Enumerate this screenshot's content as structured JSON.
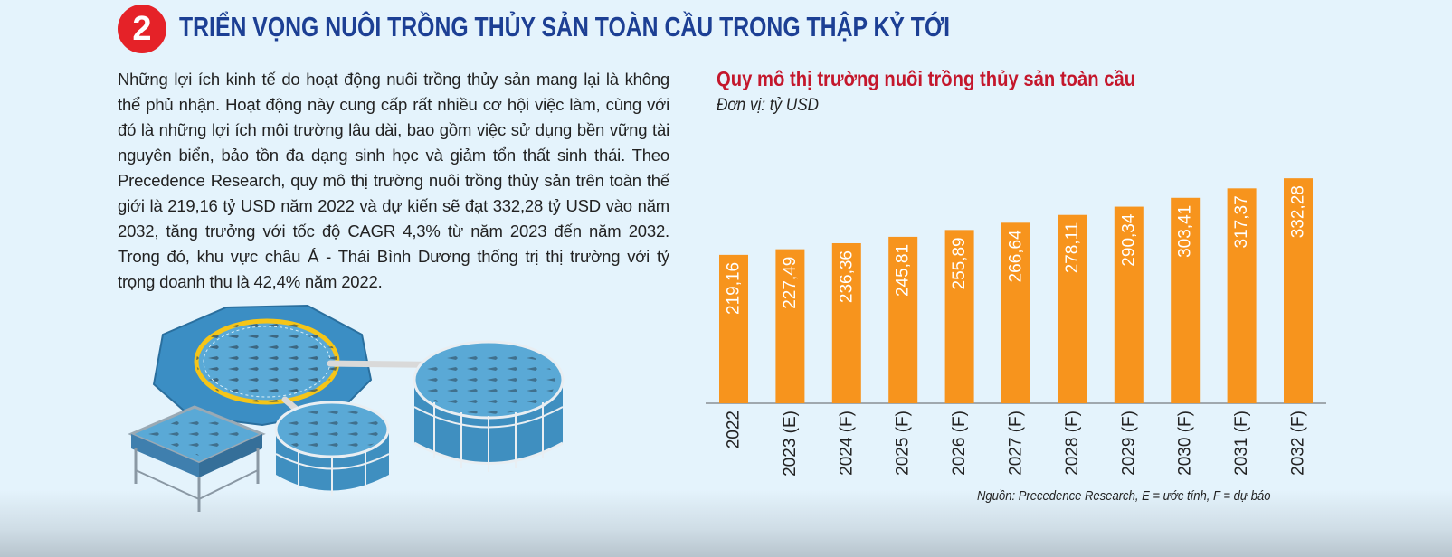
{
  "section": {
    "number": "2",
    "heading": "TRIỂN VỌNG NUÔI TRỒNG THỦY SẢN TOÀN CẦU TRONG THẬP KỶ TỚI"
  },
  "article": {
    "paragraph": "Những lợi ích kinh tế do hoạt động nuôi trồng thủy sản mang lại là không thể phủ nhận. Hoạt động này cung cấp rất nhiều cơ hội việc làm, cùng với đó là những lợi ích môi trường lâu dài, bao gồm việc sử dụng bền vững tài nguyên biển, bảo tồn đa dạng sinh học và giảm tổn thất sinh thái. Theo Precedence Research, quy mô thị trường nuôi trồng thủy sản trên toàn thế giới là 219,16 tỷ USD năm 2022 và dự kiến sẽ đạt 332,28 tỷ USD vào năm 2032, tăng trưởng với tốc độ CAGR 4,3% từ năm 2023 đến năm 2032. Trong đó, khu vực châu Á - Thái Bình Dương thống trị thị trường với tỷ trọng doanh thu là 42,4% năm 2022."
  },
  "chart_data": {
    "type": "bar",
    "title": "Quy mô thị trường nuôi trồng thủy sản toàn cầu",
    "unit_label": "Đơn vị: tỷ USD",
    "categories": [
      "2022",
      "2023 (E)",
      "2024 (F)",
      "2025 (F)",
      "2026 (F)",
      "2027 (F)",
      "2028 (F)",
      "2029 (F)",
      "2030 (F)",
      "2031 (F)",
      "2032 (F)"
    ],
    "values": [
      219.16,
      227.49,
      236.36,
      245.81,
      255.89,
      266.64,
      278.11,
      290.34,
      303.41,
      317.37,
      332.28
    ],
    "value_labels": [
      "219,16",
      "227,49",
      "236,36",
      "245,81",
      "255,89",
      "266,64",
      "278,11",
      "290,34",
      "303,41",
      "317,37",
      "332,28"
    ],
    "bar_color": "#f7941d",
    "value_label_color": "#ffffff",
    "source": "Nguồn: Precedence Research, E = ước tính, F = dự báo"
  },
  "colors": {
    "badge": "#e52228",
    "heading": "#1c3f94",
    "chart_title": "#c4172c",
    "water": "#4a9fd0",
    "tank_wall": "#3f8fc0"
  }
}
